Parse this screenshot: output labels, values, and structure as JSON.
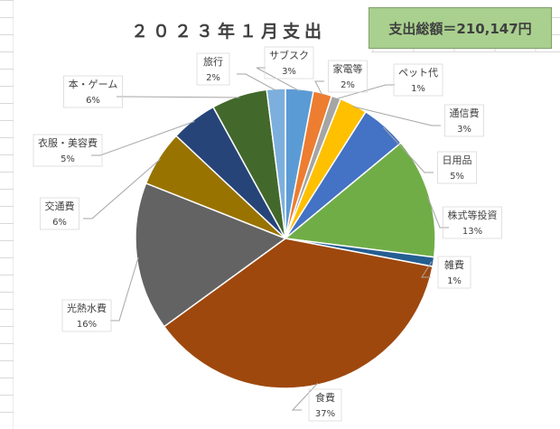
{
  "summary": {
    "total_label": "支出総額＝210,147円"
  },
  "colors": {
    "grid": "#d9d9d9",
    "leader": "#a6a6a6",
    "label_text": "#404040",
    "total_box_bg": "#a9d08e"
  },
  "chart_data": {
    "type": "pie",
    "title": "２０２３年１月支出",
    "unit": "%",
    "label_position": "outside-with-leader-lines",
    "slices": [
      {
        "label": "サブスク",
        "value": 3,
        "display": "3%",
        "color": "#5b9bd5"
      },
      {
        "label": "家電等",
        "value": 2,
        "display": "2%",
        "color": "#ed7d31"
      },
      {
        "label": "ペット代",
        "value": 1,
        "display": "1%",
        "color": "#a5a5a5"
      },
      {
        "label": "通信費",
        "value": 3,
        "display": "3%",
        "color": "#ffc000"
      },
      {
        "label": "日用品",
        "value": 5,
        "display": "5%",
        "color": "#4472c4"
      },
      {
        "label": "株式等投資",
        "value": 13,
        "display": "13%",
        "color": "#70ad47"
      },
      {
        "label": "雑費",
        "value": 1,
        "display": "1%",
        "color": "#255e91"
      },
      {
        "label": "食費",
        "value": 37,
        "display": "37%",
        "color": "#9e480e"
      },
      {
        "label": "光熱水費",
        "value": 16,
        "display": "16%",
        "color": "#636363"
      },
      {
        "label": "交通費",
        "value": 6,
        "display": "6%",
        "color": "#997300"
      },
      {
        "label": "衣服・美容費",
        "value": 5,
        "display": "5%",
        "color": "#264478"
      },
      {
        "label": "本・ゲーム",
        "value": 6,
        "display": "6%",
        "color": "#43682b"
      },
      {
        "label": "旅行",
        "value": 2,
        "display": "2%",
        "color": "#7cafdd"
      }
    ]
  }
}
